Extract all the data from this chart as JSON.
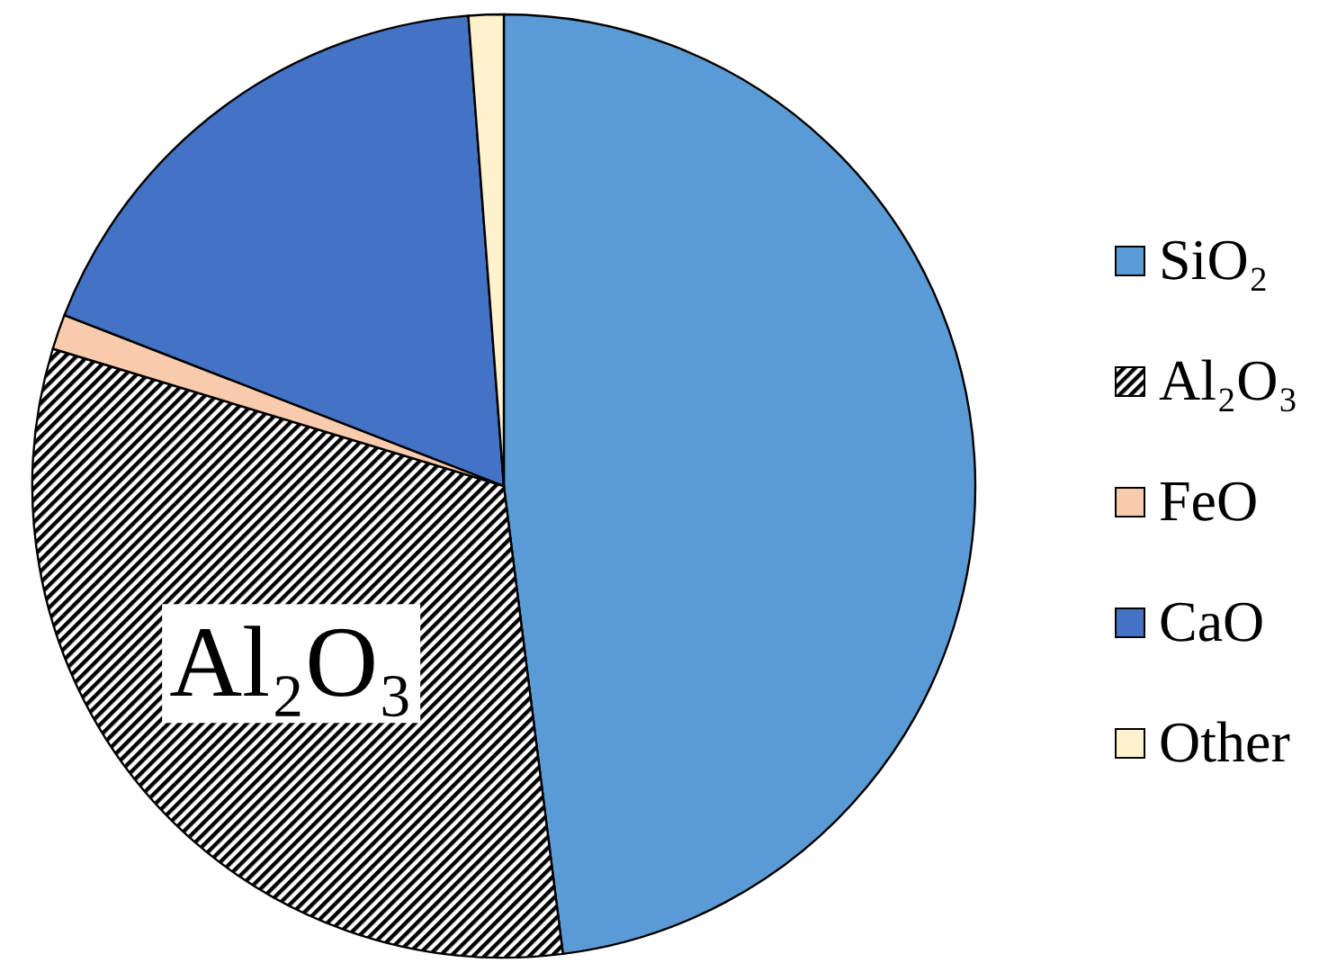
{
  "chart_data": {
    "type": "pie",
    "categories": [
      "SiO₂",
      "Al₂O₃",
      "FeO",
      "CaO",
      "Other"
    ],
    "values": [
      48,
      31.7,
      1.2,
      17.9,
      1.2
    ],
    "colors": [
      "#5b9bd5",
      "#000000",
      "#f8cbad",
      "#4472c4",
      "#fff2cc"
    ],
    "legend": "right",
    "annotations": [
      {
        "text": "Al₂O₃",
        "x": "Al₂O₃"
      }
    ]
  }
}
